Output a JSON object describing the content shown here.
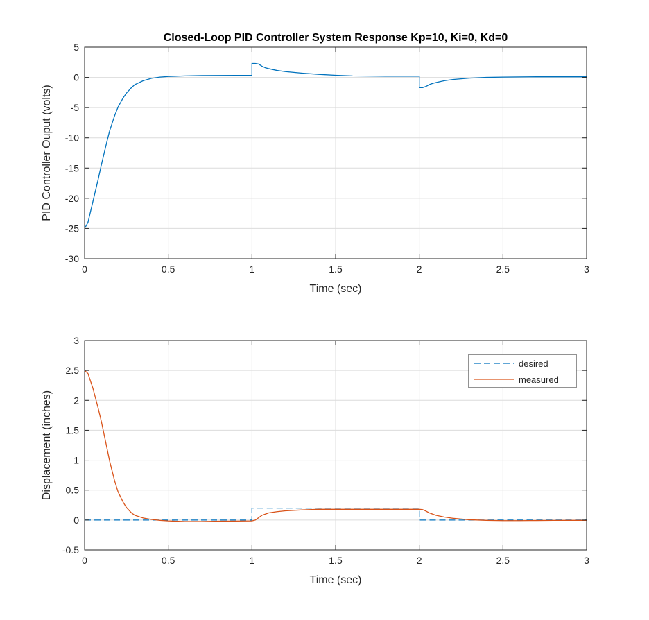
{
  "chart_data": [
    {
      "type": "line",
      "title": "Closed-Loop PID Controller System Response Kp=10, Ki=0, Kd=0",
      "xlabel": "Time (sec)",
      "ylabel": "PID Controller Ouput (volts)",
      "xlim": [
        0,
        3
      ],
      "ylim": [
        -30,
        5
      ],
      "xticks": [
        0,
        0.5,
        1,
        1.5,
        2,
        2.5,
        3
      ],
      "xtick_labels": [
        "0",
        "0.5",
        "1",
        "1.5",
        "2",
        "2.5",
        "3"
      ],
      "yticks": [
        -30,
        -25,
        -20,
        -15,
        -10,
        -5,
        0,
        5
      ],
      "ytick_labels": [
        "-30",
        "-25",
        "-20",
        "-15",
        "-10",
        "-5",
        "0",
        "5"
      ],
      "grid": true,
      "series": [
        {
          "color": "#0072BD",
          "style": "solid",
          "x": [
            0,
            0.02,
            0.05,
            0.08,
            0.1,
            0.13,
            0.15,
            0.18,
            0.2,
            0.23,
            0.25,
            0.28,
            0.3,
            0.35,
            0.4,
            0.45,
            0.5,
            0.6,
            0.7,
            0.8,
            0.9,
            0.99,
            1.0,
            1.0,
            1.02,
            1.04,
            1.06,
            1.08,
            1.1,
            1.15,
            1.2,
            1.3,
            1.4,
            1.5,
            1.6,
            1.7,
            1.8,
            1.9,
            1.99,
            2.0,
            2.0,
            2.02,
            2.04,
            2.06,
            2.08,
            2.1,
            2.15,
            2.2,
            2.3,
            2.4,
            2.5,
            2.6,
            2.7,
            2.8,
            2.9,
            3.0
          ],
          "y": [
            -25,
            -24,
            -20.5,
            -17,
            -14.5,
            -11,
            -8.8,
            -6.3,
            -4.9,
            -3.4,
            -2.6,
            -1.7,
            -1.2,
            -0.55,
            -0.15,
            0.05,
            0.15,
            0.25,
            0.3,
            0.32,
            0.33,
            0.33,
            0.33,
            2.3,
            2.3,
            2.2,
            1.85,
            1.6,
            1.45,
            1.15,
            0.95,
            0.7,
            0.5,
            0.35,
            0.25,
            0.22,
            0.2,
            0.2,
            0.2,
            0.2,
            -1.7,
            -1.7,
            -1.5,
            -1.2,
            -1.0,
            -0.85,
            -0.55,
            -0.35,
            -0.12,
            0.0,
            0.05,
            0.08,
            0.1,
            0.1,
            0.1,
            0.1
          ]
        }
      ]
    },
    {
      "type": "line",
      "xlabel": "Time (sec)",
      "ylabel": "Displacement (inches)",
      "xlim": [
        0,
        3
      ],
      "ylim": [
        -0.5,
        3
      ],
      "xticks": [
        0,
        0.5,
        1,
        1.5,
        2,
        2.5,
        3
      ],
      "xtick_labels": [
        "0",
        "0.5",
        "1",
        "1.5",
        "2",
        "2.5",
        "3"
      ],
      "yticks": [
        -0.5,
        0,
        0.5,
        1,
        1.5,
        2,
        2.5,
        3
      ],
      "ytick_labels": [
        "-0.5",
        "0",
        "0.5",
        "1",
        "1.5",
        "2",
        "2.5",
        "3"
      ],
      "grid": true,
      "legend_position": "top-right",
      "series": [
        {
          "name": "desired",
          "color": "#0072BD",
          "style": "dashed",
          "x": [
            0,
            1.0,
            1.0,
            2.0,
            2.0,
            3.0
          ],
          "y": [
            0,
            0,
            0.2,
            0.2,
            0,
            0
          ]
        },
        {
          "name": "measured",
          "color": "#D95319",
          "style": "solid",
          "x": [
            0,
            0.02,
            0.05,
            0.08,
            0.1,
            0.13,
            0.15,
            0.18,
            0.2,
            0.23,
            0.25,
            0.28,
            0.3,
            0.35,
            0.4,
            0.45,
            0.5,
            0.6,
            0.7,
            0.8,
            0.9,
            1.0,
            1.02,
            1.04,
            1.06,
            1.08,
            1.1,
            1.15,
            1.2,
            1.3,
            1.4,
            1.5,
            1.6,
            1.7,
            1.8,
            1.9,
            2.0,
            2.02,
            2.04,
            2.06,
            2.08,
            2.1,
            2.15,
            2.2,
            2.3,
            2.4,
            2.5,
            2.6,
            2.7,
            2.8,
            2.9,
            3.0
          ],
          "y": [
            2.5,
            2.45,
            2.2,
            1.88,
            1.65,
            1.25,
            0.98,
            0.65,
            0.47,
            0.3,
            0.21,
            0.12,
            0.08,
            0.035,
            0.01,
            -0.005,
            -0.015,
            -0.025,
            -0.025,
            -0.02,
            -0.018,
            -0.015,
            0.0,
            0.04,
            0.08,
            0.1,
            0.12,
            0.14,
            0.155,
            0.17,
            0.18,
            0.18,
            0.18,
            0.18,
            0.18,
            0.18,
            0.18,
            0.175,
            0.15,
            0.12,
            0.1,
            0.08,
            0.05,
            0.03,
            0.005,
            -0.005,
            -0.01,
            -0.01,
            -0.008,
            -0.006,
            -0.005,
            -0.005
          ]
        }
      ]
    }
  ]
}
